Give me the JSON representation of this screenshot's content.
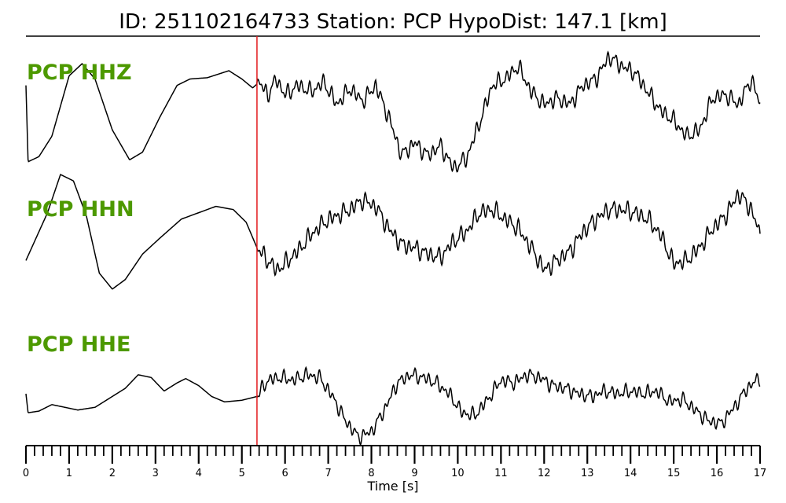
{
  "chart_data": {
    "type": "line",
    "title": "ID: 251102164733   Station: PCP   HypoDist:   147.1 [km]",
    "xlabel": "Time [s]",
    "xlim": [
      0,
      17
    ],
    "x_ticks": [
      0,
      1,
      2,
      3,
      4,
      5,
      6,
      7,
      8,
      9,
      10,
      11,
      12,
      13,
      14,
      15,
      16,
      17
    ],
    "minor_tick_step": 0.2,
    "pick_time": 5.35,
    "label_color": "#4d9900",
    "pick_color": "#e31a1c",
    "trace_color": "#000000",
    "channels": [
      {
        "name": "PCP HHZ",
        "ylim": [
          -1,
          1
        ],
        "points": [
          [
            0,
            0.4
          ],
          [
            0.05,
            -0.8
          ],
          [
            0.3,
            -0.72
          ],
          [
            0.6,
            -0.4
          ],
          [
            1.0,
            0.55
          ],
          [
            1.3,
            0.74
          ],
          [
            1.6,
            0.5
          ],
          [
            2.0,
            -0.3
          ],
          [
            2.4,
            -0.77
          ],
          [
            2.7,
            -0.65
          ],
          [
            3.1,
            -0.1
          ],
          [
            3.5,
            0.4
          ],
          [
            3.8,
            0.5
          ],
          [
            4.2,
            0.52
          ],
          [
            4.7,
            0.63
          ],
          [
            5.0,
            0.5
          ],
          [
            5.25,
            0.36
          ],
          [
            5.4,
            0.45
          ],
          [
            5.6,
            0.25
          ],
          [
            5.8,
            0.5
          ],
          [
            6.0,
            0.25
          ],
          [
            6.3,
            0.4
          ],
          [
            6.6,
            0.3
          ],
          [
            6.9,
            0.45
          ],
          [
            7.2,
            0.1
          ],
          [
            7.5,
            0.35
          ],
          [
            7.8,
            0.15
          ],
          [
            8.1,
            0.4
          ],
          [
            8.4,
            -0.1
          ],
          [
            8.7,
            -0.7
          ],
          [
            9.0,
            -0.5
          ],
          [
            9.3,
            -0.7
          ],
          [
            9.6,
            -0.55
          ],
          [
            9.9,
            -0.9
          ],
          [
            10.2,
            -0.75
          ],
          [
            10.5,
            -0.2
          ],
          [
            10.8,
            0.4
          ],
          [
            11.1,
            0.5
          ],
          [
            11.4,
            0.7
          ],
          [
            11.7,
            0.3
          ],
          [
            12.0,
            0.1
          ],
          [
            12.3,
            0.2
          ],
          [
            12.6,
            0.1
          ],
          [
            12.9,
            0.4
          ],
          [
            13.2,
            0.5
          ],
          [
            13.5,
            0.85
          ],
          [
            13.8,
            0.7
          ],
          [
            14.1,
            0.6
          ],
          [
            14.4,
            0.3
          ],
          [
            14.7,
            0.0
          ],
          [
            15.0,
            -0.15
          ],
          [
            15.3,
            -0.4
          ],
          [
            15.6,
            -0.3
          ],
          [
            15.9,
            0.2
          ],
          [
            16.2,
            0.25
          ],
          [
            16.5,
            0.1
          ],
          [
            16.8,
            0.5
          ],
          [
            17.0,
            0.1
          ]
        ],
        "noise_after_pick": 0.12
      },
      {
        "name": "PCP HHN",
        "ylim": [
          -1,
          1
        ],
        "points": [
          [
            0,
            -0.4
          ],
          [
            0.2,
            -0.1
          ],
          [
            0.5,
            0.35
          ],
          [
            0.8,
            0.95
          ],
          [
            1.1,
            0.85
          ],
          [
            1.4,
            0.3
          ],
          [
            1.7,
            -0.6
          ],
          [
            2.0,
            -0.85
          ],
          [
            2.3,
            -0.7
          ],
          [
            2.7,
            -0.3
          ],
          [
            3.1,
            -0.05
          ],
          [
            3.6,
            0.25
          ],
          [
            4.0,
            0.35
          ],
          [
            4.4,
            0.45
          ],
          [
            4.8,
            0.4
          ],
          [
            5.1,
            0.2
          ],
          [
            5.35,
            -0.2
          ],
          [
            5.6,
            -0.4
          ],
          [
            5.8,
            -0.55
          ],
          [
            6.0,
            -0.45
          ],
          [
            6.3,
            -0.25
          ],
          [
            6.6,
            0.0
          ],
          [
            6.9,
            0.2
          ],
          [
            7.2,
            0.3
          ],
          [
            7.5,
            0.4
          ],
          [
            7.8,
            0.55
          ],
          [
            8.1,
            0.45
          ],
          [
            8.4,
            0.1
          ],
          [
            8.7,
            -0.15
          ],
          [
            9.0,
            -0.2
          ],
          [
            9.3,
            -0.3
          ],
          [
            9.6,
            -0.35
          ],
          [
            9.9,
            -0.1
          ],
          [
            10.2,
            0.05
          ],
          [
            10.5,
            0.35
          ],
          [
            10.8,
            0.4
          ],
          [
            11.1,
            0.25
          ],
          [
            11.4,
            0.1
          ],
          [
            11.7,
            -0.2
          ],
          [
            12.0,
            -0.55
          ],
          [
            12.3,
            -0.4
          ],
          [
            12.6,
            -0.25
          ],
          [
            12.9,
            0.05
          ],
          [
            13.2,
            0.25
          ],
          [
            13.5,
            0.4
          ],
          [
            13.8,
            0.4
          ],
          [
            14.1,
            0.35
          ],
          [
            14.4,
            0.25
          ],
          [
            14.7,
            0.0
          ],
          [
            15.0,
            -0.45
          ],
          [
            15.3,
            -0.4
          ],
          [
            15.6,
            -0.2
          ],
          [
            15.9,
            0.1
          ],
          [
            16.2,
            0.3
          ],
          [
            16.5,
            0.65
          ],
          [
            16.8,
            0.4
          ],
          [
            17.0,
            0.0
          ]
        ],
        "noise_after_pick": 0.13
      },
      {
        "name": "PCP HHE",
        "ylim": [
          -1,
          1
        ],
        "points": [
          [
            0,
            0.0
          ],
          [
            0.05,
            -0.35
          ],
          [
            0.3,
            -0.32
          ],
          [
            0.6,
            -0.2
          ],
          [
            0.9,
            -0.25
          ],
          [
            1.2,
            -0.3
          ],
          [
            1.6,
            -0.25
          ],
          [
            2.0,
            -0.05
          ],
          [
            2.3,
            0.1
          ],
          [
            2.6,
            0.35
          ],
          [
            2.9,
            0.3
          ],
          [
            3.2,
            0.05
          ],
          [
            3.5,
            0.2
          ],
          [
            3.7,
            0.28
          ],
          [
            4.0,
            0.15
          ],
          [
            4.3,
            -0.05
          ],
          [
            4.6,
            -0.15
          ],
          [
            5.0,
            -0.12
          ],
          [
            5.35,
            -0.05
          ],
          [
            5.6,
            0.25
          ],
          [
            5.9,
            0.3
          ],
          [
            6.2,
            0.25
          ],
          [
            6.5,
            0.35
          ],
          [
            6.8,
            0.3
          ],
          [
            7.1,
            -0.05
          ],
          [
            7.4,
            -0.5
          ],
          [
            7.7,
            -0.8
          ],
          [
            8.0,
            -0.7
          ],
          [
            8.3,
            -0.3
          ],
          [
            8.6,
            0.2
          ],
          [
            8.9,
            0.35
          ],
          [
            9.2,
            0.3
          ],
          [
            9.5,
            0.2
          ],
          [
            9.8,
            0.0
          ],
          [
            10.1,
            -0.35
          ],
          [
            10.4,
            -0.4
          ],
          [
            10.7,
            -0.1
          ],
          [
            11.0,
            0.25
          ],
          [
            11.3,
            0.2
          ],
          [
            11.6,
            0.35
          ],
          [
            11.9,
            0.3
          ],
          [
            12.2,
            0.15
          ],
          [
            12.5,
            0.1
          ],
          [
            12.8,
            0.0
          ],
          [
            13.1,
            -0.05
          ],
          [
            13.4,
            0.05
          ],
          [
            13.7,
            0.0
          ],
          [
            14.0,
            0.05
          ],
          [
            14.3,
            0.0
          ],
          [
            14.6,
            0.05
          ],
          [
            14.9,
            -0.15
          ],
          [
            15.2,
            -0.1
          ],
          [
            15.5,
            -0.3
          ],
          [
            15.8,
            -0.5
          ],
          [
            16.1,
            -0.55
          ],
          [
            16.4,
            -0.25
          ],
          [
            16.7,
            0.1
          ],
          [
            17.0,
            0.3
          ]
        ],
        "noise_after_pick": 0.12
      }
    ]
  }
}
